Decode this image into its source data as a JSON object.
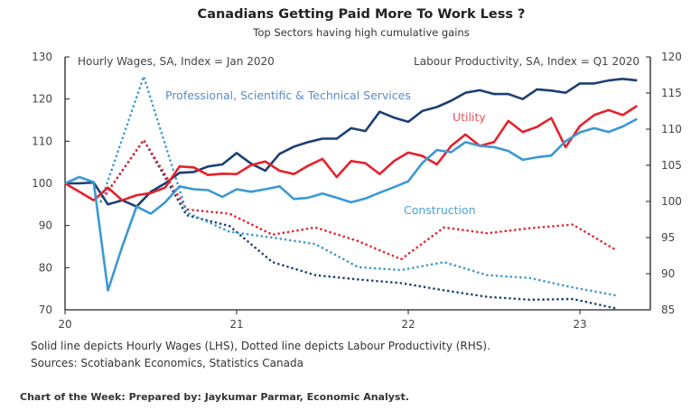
{
  "chart_data": {
    "type": "line",
    "title": "Canadians Getting Paid More To Work Less ?",
    "subtitle": "Top Sectors having high cumulative gains",
    "left_axis": {
      "label": "Hourly Wages, SA, Index = Jan 2020",
      "range": [
        70,
        130
      ],
      "ticks": [
        70,
        80,
        90,
        100,
        110,
        120,
        130
      ]
    },
    "right_axis": {
      "label": "Labour Productivity, SA, Index = Q1 2020",
      "range": [
        85,
        120
      ],
      "ticks": [
        85,
        90,
        95,
        100,
        105,
        110,
        115,
        120
      ]
    },
    "x_axis": {
      "ticks": [
        "20",
        "21",
        "22",
        "23"
      ],
      "range": [
        "2020-01",
        "2023-05"
      ]
    },
    "grid": false,
    "series": [
      {
        "name": "Professional, Scientific & Technical Services",
        "measure": "wages",
        "axis": "left",
        "style": "solid",
        "color": "#1c3f74",
        "start": "2020-01",
        "frequency": "monthly",
        "values": [
          100,
          100,
          100.2,
          95,
          96,
          94.5,
          98,
          100,
          102.5,
          102.7,
          104,
          104.5,
          107.2,
          104.7,
          103,
          107,
          108.7,
          109.8,
          110.6,
          110.6,
          113.1,
          112.4,
          117,
          115.6,
          114.6,
          117.2,
          118.1,
          119.6,
          121.5,
          122.1,
          121.2,
          121.2,
          120,
          122.3,
          122,
          121.5,
          123.7,
          123.7,
          124.4,
          124.8,
          124.4
        ]
      },
      {
        "name": "Utility",
        "measure": "wages",
        "axis": "left",
        "style": "solid",
        "color": "#e5212b",
        "start": "2020-01",
        "frequency": "monthly",
        "values": [
          100,
          98,
          96,
          99,
          96,
          97.2,
          97.7,
          99,
          104,
          103.8,
          102,
          102.3,
          102.2,
          104.3,
          105.2,
          103,
          102.2,
          104.2,
          105.8,
          101.5,
          105.3,
          104.8,
          102.2,
          105.3,
          107.3,
          106.5,
          104.5,
          108.9,
          111.6,
          108.9,
          109.8,
          114.8,
          112.2,
          113.4,
          115.5,
          108.6,
          113.6,
          116.2,
          117.4,
          116.2,
          118.4
        ]
      },
      {
        "name": "Construction",
        "measure": "wages",
        "axis": "left",
        "style": "solid",
        "color": "#3a99d4",
        "start": "2020-01",
        "frequency": "monthly",
        "values": [
          100,
          101.5,
          100.3,
          74.6,
          85,
          94.5,
          92.8,
          95.5,
          99.3,
          98.6,
          98.4,
          96.8,
          98.6,
          98,
          98.6,
          99.3,
          96.3,
          96.6,
          97.6,
          96.6,
          95.5,
          96.4,
          97.8,
          99.1,
          100.5,
          104.9,
          107.9,
          107.4,
          109.8,
          108.9,
          108.6,
          107.7,
          105.6,
          106.2,
          106.6,
          110,
          112.1,
          113.1,
          112.2,
          113.5,
          115.3
        ]
      },
      {
        "name": "Professional, Scientific & Technical Services",
        "measure": "productivity",
        "axis": "right",
        "style": "dotted",
        "color": "#1c3f74",
        "start": "2020-Q1",
        "frequency": "quarterly",
        "values": [
          100,
          108.5,
          98.1,
          96.6,
          91.6,
          89.8,
          89.2,
          88.7,
          87.7,
          86.8,
          86.4,
          86.5,
          85.2
        ]
      },
      {
        "name": "Utility",
        "measure": "productivity",
        "axis": "right",
        "style": "dotted",
        "color": "#e5212b",
        "start": "2020-Q1",
        "frequency": "quarterly",
        "values": [
          100,
          108.5,
          98.9,
          98.3,
          95.4,
          96.4,
          94.5,
          92,
          96.4,
          95.6,
          96.3,
          96.8,
          93.3
        ]
      },
      {
        "name": "Construction",
        "measure": "productivity",
        "axis": "right",
        "style": "dotted",
        "color": "#3a99d4",
        "start": "2020-Q1",
        "frequency": "quarterly",
        "values": [
          100,
          117.3,
          98.5,
          95.8,
          95,
          94.1,
          90.9,
          90.5,
          91.6,
          89.8,
          89.4,
          88.1,
          87
        ]
      }
    ],
    "annotations": [
      {
        "text": "Professional, Scientific & Technical Services",
        "color": "#5a8cc6"
      },
      {
        "text": "Utility",
        "color": "#f0505a"
      },
      {
        "text": "Construction",
        "color": "#4aa3dc"
      }
    ]
  },
  "notes": {
    "line1": "Solid line depicts Hourly Wages (LHS), Dotted line depicts Labour Productivity (RHS).",
    "line2": "Sources: Scotiabank Economics, Statistics Canada",
    "credit": "Chart of the Week: Prepared by: Jaykumar Parmar, Economic Analyst."
  }
}
